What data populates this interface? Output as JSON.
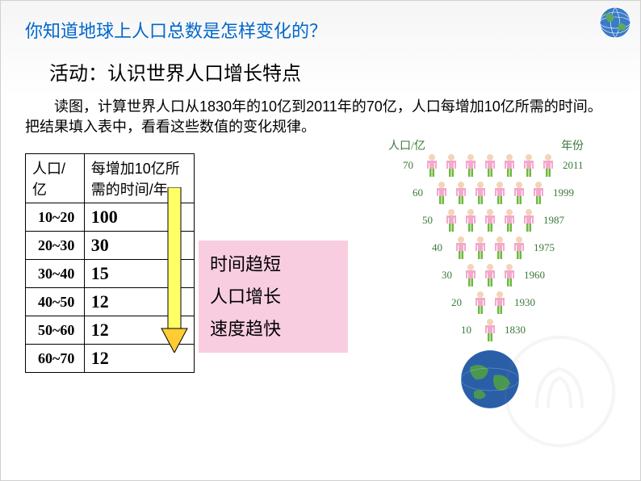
{
  "question": "你知道地球上人口总数是怎样变化的？",
  "activity_title": "活动：认识世界人口增长特点",
  "instruction": "读图，计算世界人口从1830年的10亿到2011年的70亿，人口每增加10亿所需的时间。把结果填入表中，看看这些数值的变化规律。",
  "table": {
    "headers": [
      "人口/亿",
      "每增加10亿所需的时间/年"
    ],
    "rows": [
      {
        "range": "10~20",
        "value": "100"
      },
      {
        "range": "20~30",
        "value": "30"
      },
      {
        "range": "30~40",
        "value": "15"
      },
      {
        "range": "40~50",
        "value": "12"
      },
      {
        "range": "50~60",
        "value": "12"
      },
      {
        "range": "60~70",
        "value": "12"
      }
    ]
  },
  "annotation": {
    "line1": "时间趋短",
    "line2": "人口增长",
    "line3": "速度趋快",
    "bg_color": "#f8cde0"
  },
  "arrow": {
    "body_fill": "#ffff66",
    "head_fill": "#ffcc33",
    "stroke": "#000000"
  },
  "chart": {
    "y_axis_label": "人口/亿",
    "year_axis_label": "年份",
    "label_color": "#3a7a3a",
    "rows": [
      {
        "count": 70,
        "figures": 7,
        "year": 2011
      },
      {
        "count": 60,
        "figures": 6,
        "year": 1999
      },
      {
        "count": 50,
        "figures": 5,
        "year": 1987
      },
      {
        "count": 40,
        "figures": 4,
        "year": 1975
      },
      {
        "count": 30,
        "figures": 3,
        "year": 1960
      },
      {
        "count": 20,
        "figures": 2,
        "year": 1930
      },
      {
        "count": 10,
        "figures": 1,
        "year": 1830
      }
    ],
    "person_colors": {
      "body": "#f4a8cc",
      "legs": "#6fb83f",
      "head": "#f4d4b8"
    }
  },
  "colors": {
    "question": "#0066cc",
    "text": "#000000",
    "border": "#000000"
  }
}
